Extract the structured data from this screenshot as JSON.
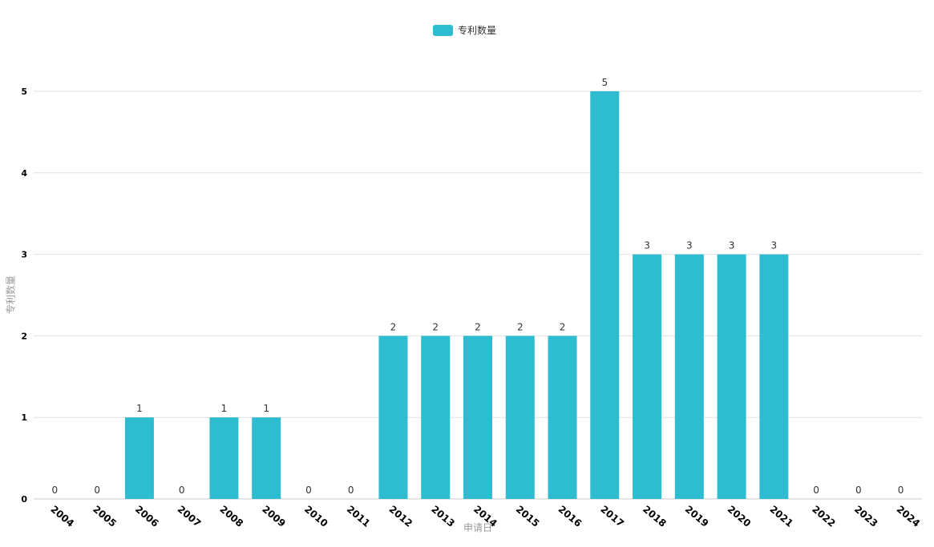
{
  "chart_data": {
    "type": "bar",
    "categories": [
      "2004",
      "2005",
      "2006",
      "2007",
      "2008",
      "2009",
      "2010",
      "2011",
      "2012",
      "2013",
      "2014",
      "2015",
      "2016",
      "2017",
      "2018",
      "2019",
      "2020",
      "2021",
      "2022",
      "2023",
      "2024"
    ],
    "series": [
      {
        "name": "专利数量",
        "values": [
          0,
          0,
          1,
          0,
          1,
          1,
          0,
          0,
          2,
          2,
          2,
          2,
          2,
          5,
          3,
          3,
          3,
          3,
          0,
          0,
          0
        ]
      }
    ],
    "xlabel": "申请日",
    "ylabel": "专利数量",
    "ylim": [
      0,
      5
    ],
    "yticks": [
      "0",
      "1",
      "2",
      "3",
      "4",
      "5"
    ],
    "grid": true,
    "legend": "top-center",
    "color": "#2ebcd0"
  }
}
